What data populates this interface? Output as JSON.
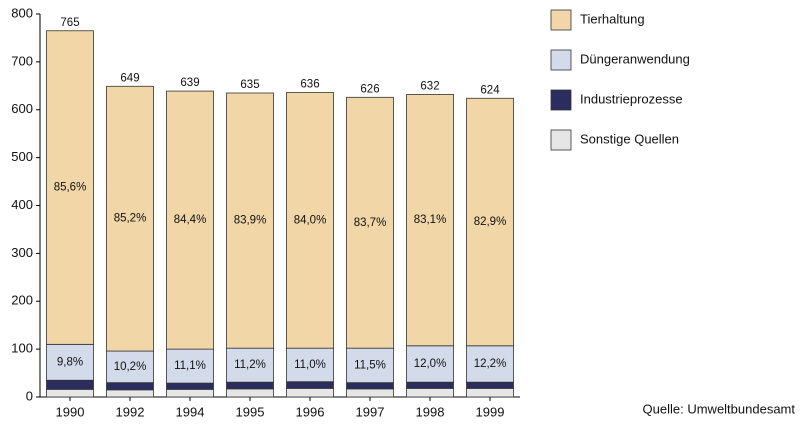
{
  "chart_data": {
    "type": "stacked_bar",
    "categories": [
      "1990",
      "1992",
      "1994",
      "1995",
      "1996",
      "1997",
      "1998",
      "1999"
    ],
    "series": [
      {
        "name": "Sonstige Quellen",
        "color": "#e6e6e6",
        "values": [
          16,
          15,
          16,
          17,
          18,
          17,
          18,
          18
        ]
      },
      {
        "name": "Industrieprozesse",
        "color": "#2b2d5e",
        "values": [
          19,
          15,
          13,
          14,
          14,
          13,
          13,
          13
        ]
      },
      {
        "name": "Düngeranwendung",
        "color": "#d3daea",
        "values": [
          75,
          66,
          71,
          71,
          70,
          72,
          76,
          76
        ],
        "share_labels": [
          "9,8%",
          "10,2%",
          "11,1%",
          "11,2%",
          "11,0%",
          "11,5%",
          "12,0%",
          "12,2%"
        ]
      },
      {
        "name": "Tierhaltung",
        "color": "#f1d6a7",
        "values": [
          655,
          553,
          539,
          533,
          534,
          524,
          525,
          517
        ],
        "share_labels": [
          "85,6%",
          "85,2%",
          "84,4%",
          "83,9%",
          "84,0%",
          "83,7%",
          "83,1%",
          "82,9%"
        ]
      }
    ],
    "totals": [
      765,
      649,
      639,
      635,
      636,
      626,
      632,
      624
    ],
    "ylim": [
      0,
      800
    ],
    "yticks": [
      0,
      100,
      200,
      300,
      400,
      500,
      600,
      700,
      800
    ],
    "source": "Quelle: Umweltbundesamt"
  }
}
